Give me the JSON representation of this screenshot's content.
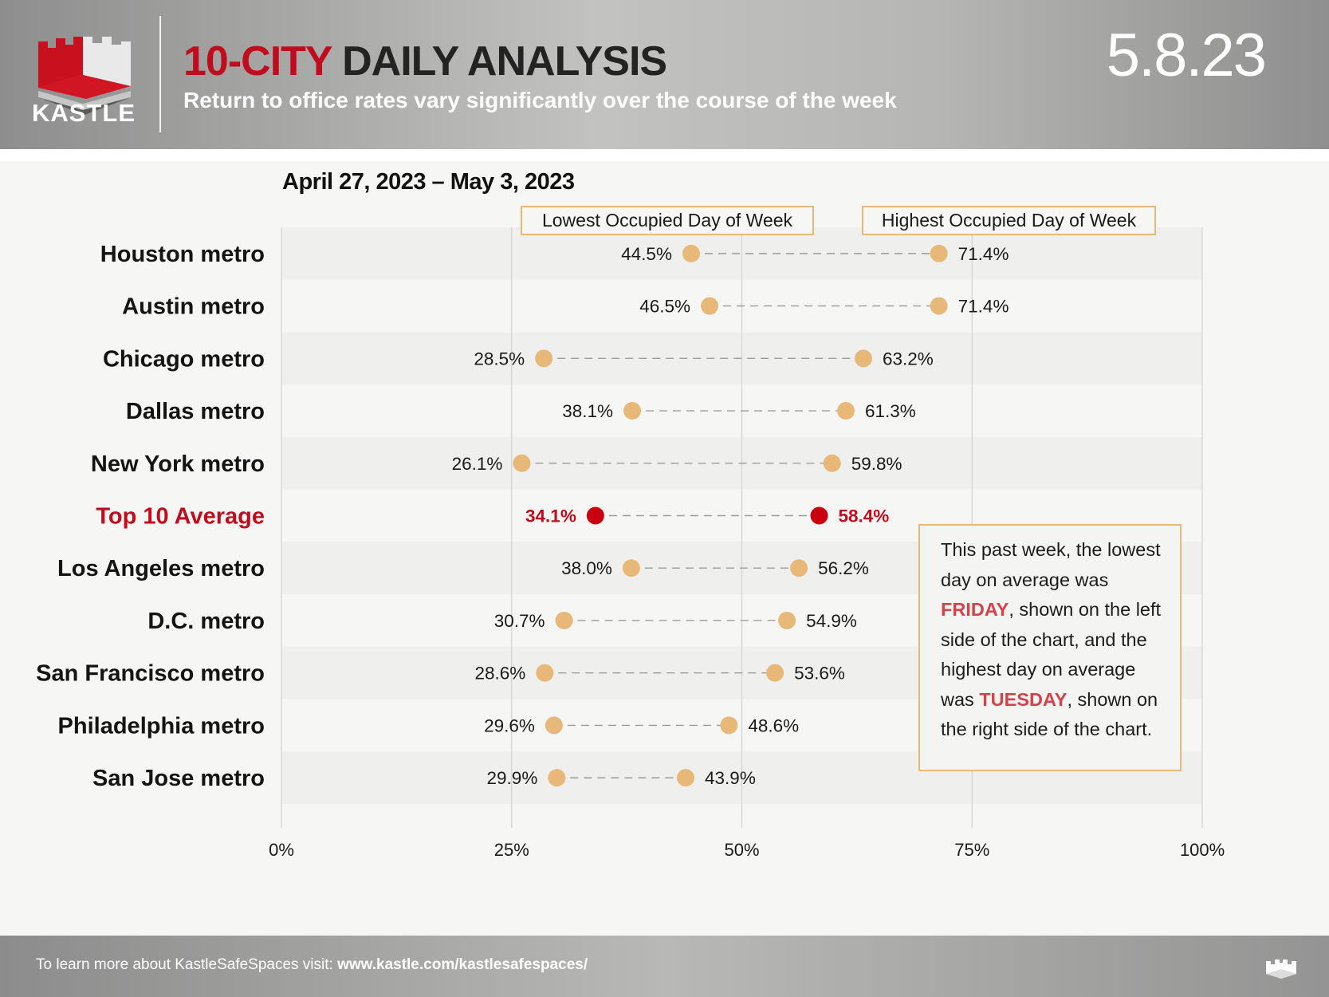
{
  "header": {
    "logo_text": "KASTLE",
    "title_accent": "10-CITY",
    "title_rest": " DAILY ANALYSIS",
    "subtitle": "Return to office rates vary significantly over the course of the week",
    "date": "5.8.23"
  },
  "date_range": "April 27, 2023 – May 3, 2023",
  "note": {
    "part1": "This past week, the lowest day on average was ",
    "low_day": "FRIDAY",
    "part2": ", shown on the left side of the chart, and the highest day on average was ",
    "high_day": "TUESDAY",
    "part3": ", shown on the right side of the chart."
  },
  "footer": {
    "text": "To learn more about KastleSafeSpaces visit: ",
    "url": "www.kastle.com/kastlesafespaces/"
  },
  "colors": {
    "accent_red": "#c00d1e",
    "dot": "#e8b878",
    "highlight_dot": "#c8000f",
    "note_highlight": "#d2434b"
  },
  "chart_data": {
    "type": "dumbbell",
    "series": [
      {
        "name": "Lowest Occupied Day of Week"
      },
      {
        "name": "Highest Occupied Day of Week"
      }
    ],
    "xlim": [
      0,
      100
    ],
    "x_ticks": [
      "0%",
      "25%",
      "50%",
      "75%",
      "100%"
    ],
    "grid": true,
    "rows": [
      {
        "label": "Houston metro",
        "low": 44.5,
        "high": 71.4,
        "low_label": "44.5%",
        "high_label": "71.4%"
      },
      {
        "label": "Austin metro",
        "low": 46.5,
        "high": 71.4,
        "low_label": "46.5%",
        "high_label": "71.4%"
      },
      {
        "label": "Chicago metro",
        "low": 28.5,
        "high": 63.2,
        "low_label": "28.5%",
        "high_label": "63.2%"
      },
      {
        "label": "Dallas metro",
        "low": 38.1,
        "high": 61.3,
        "low_label": "38.1%",
        "high_label": "61.3%"
      },
      {
        "label": "New York metro",
        "low": 26.1,
        "high": 59.8,
        "low_label": "26.1%",
        "high_label": "59.8%"
      },
      {
        "label": "Top 10 Average",
        "low": 34.1,
        "high": 58.4,
        "low_label": "34.1%",
        "high_label": "58.4%",
        "highlight": true
      },
      {
        "label": "Los Angeles metro",
        "low": 38.0,
        "high": 56.2,
        "low_label": "38.0%",
        "high_label": "56.2%"
      },
      {
        "label": "D.C. metro",
        "low": 30.7,
        "high": 54.9,
        "low_label": "30.7%",
        "high_label": "54.9%"
      },
      {
        "label": "San Francisco metro",
        "low": 28.6,
        "high": 53.6,
        "low_label": "28.6%",
        "high_label": "53.6%"
      },
      {
        "label": "Philadelphia metro",
        "low": 29.6,
        "high": 48.6,
        "low_label": "29.6%",
        "high_label": "48.6%"
      },
      {
        "label": "San Jose metro",
        "low": 29.9,
        "high": 43.9,
        "low_label": "29.9%",
        "high_label": "43.9%"
      }
    ]
  }
}
